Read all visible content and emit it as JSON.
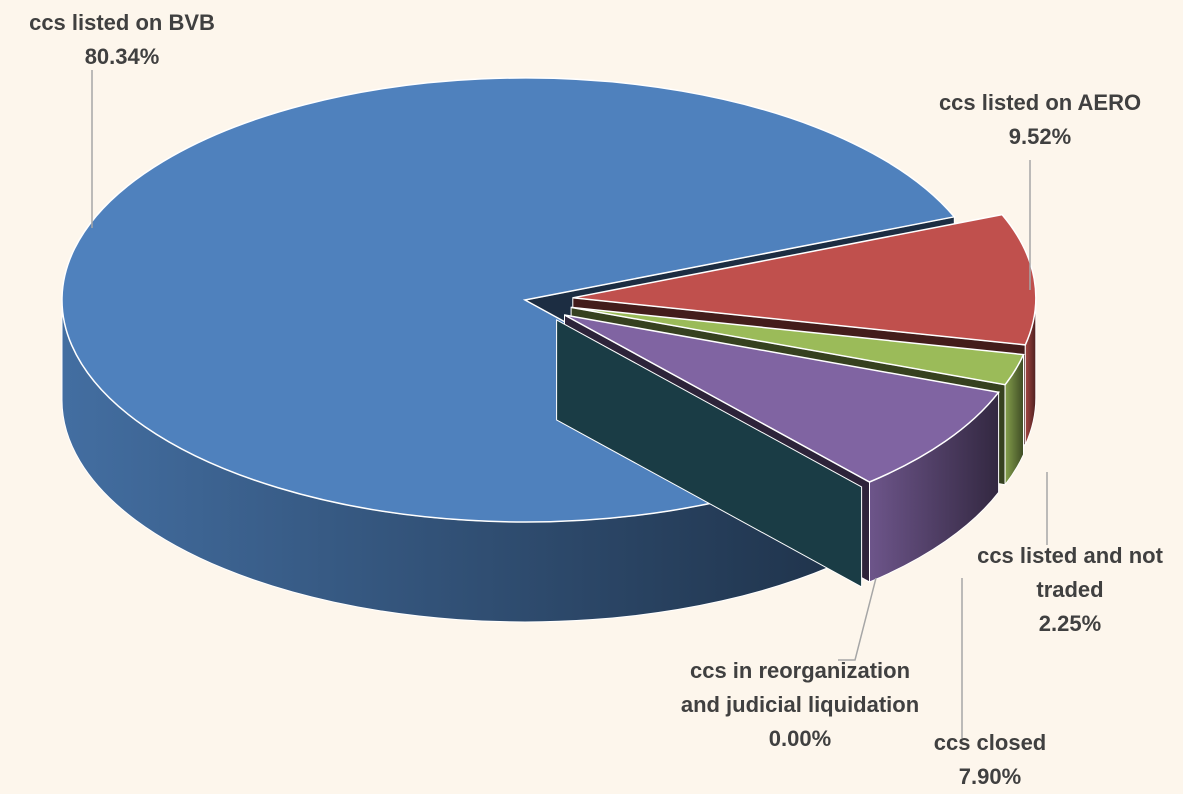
{
  "chart_data": {
    "type": "pie3d",
    "categories": [
      "ccs listed on AERO",
      "ccs listed and not traded",
      "ccs closed",
      "ccs in reorganization and judicial liquidation",
      "ccs listed on BVB"
    ],
    "values": [
      9.52,
      2.25,
      7.9,
      0.0,
      80.34
    ],
    "value_labels": [
      "9.52%",
      "2.25%",
      "7.90%",
      "0.00%",
      "80.34%"
    ],
    "colors": [
      "#c0504d",
      "#9bbb59",
      "#8064a2",
      "#4bacc6",
      "#4f81bd"
    ]
  }
}
